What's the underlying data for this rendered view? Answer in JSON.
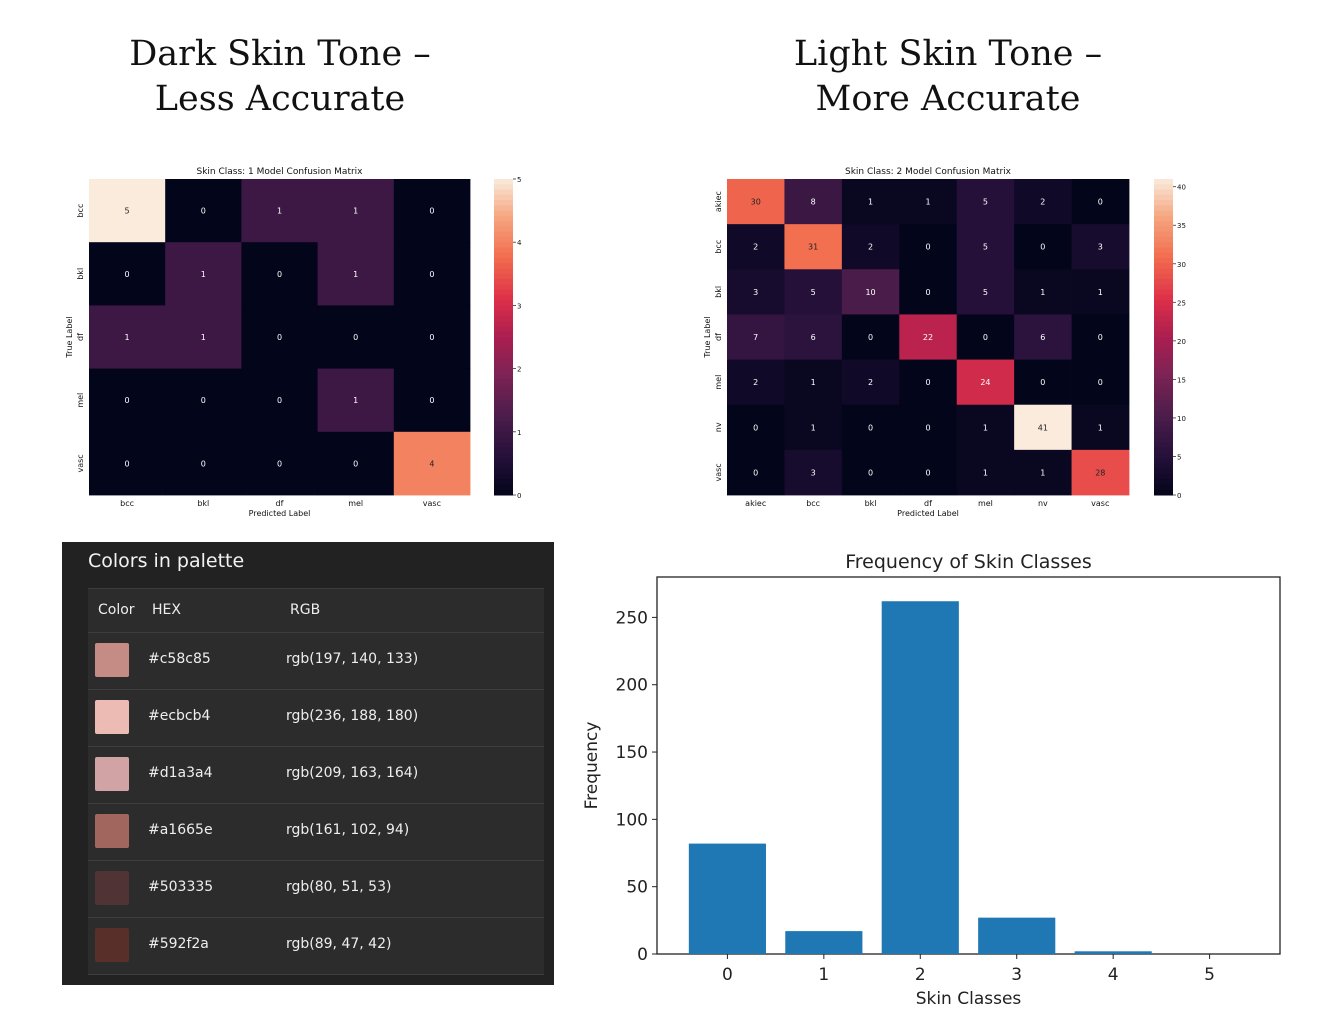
{
  "headings": {
    "left": [
      "Dark Skin Tone –",
      "Less Accurate"
    ],
    "right": [
      "Light Skin Tone –",
      "More Accurate"
    ]
  },
  "palette": {
    "title": "Colors in palette",
    "headers": [
      "Color",
      "HEX",
      "RGB"
    ],
    "rows": [
      {
        "hex": "#c58c85",
        "rgb": "rgb(197, 140, 133)"
      },
      {
        "hex": "#ecbcb4",
        "rgb": "rgb(236, 188, 180)"
      },
      {
        "hex": "#d1a3a4",
        "rgb": "rgb(209, 163, 164)"
      },
      {
        "hex": "#a1665e",
        "rgb": "rgb(161, 102, 94)"
      },
      {
        "hex": "#503335",
        "rgb": "rgb(80, 51, 53)"
      },
      {
        "hex": "#592f2a",
        "rgb": "rgb(89, 47, 42)"
      }
    ]
  },
  "chart_data": [
    {
      "type": "heatmap",
      "title": "Skin Class: 1 Model Confusion Matrix",
      "xlabel": "Predicted Label",
      "ylabel": "True Label",
      "x_labels": [
        "bcc",
        "bkl",
        "df",
        "mel",
        "vasc"
      ],
      "y_labels": [
        "bcc",
        "bkl",
        "df",
        "mel",
        "vasc"
      ],
      "values": [
        [
          5,
          0,
          1,
          1,
          0
        ],
        [
          0,
          1,
          0,
          1,
          0
        ],
        [
          1,
          1,
          0,
          0,
          0
        ],
        [
          0,
          0,
          0,
          1,
          0
        ],
        [
          0,
          0,
          0,
          0,
          4
        ]
      ],
      "colorbar_range": [
        0,
        5
      ],
      "colorbar_ticks": [
        0,
        1,
        2,
        3,
        4,
        5
      ],
      "colormap": "rocket"
    },
    {
      "type": "heatmap",
      "title": "Skin Class: 2 Model Confusion Matrix",
      "xlabel": "Predicted Label",
      "ylabel": "True Label",
      "x_labels": [
        "akiec",
        "bcc",
        "bkl",
        "df",
        "mel",
        "nv",
        "vasc"
      ],
      "y_labels": [
        "akiec",
        "bcc",
        "bkl",
        "df",
        "mel",
        "nv",
        "vasc"
      ],
      "values": [
        [
          30,
          8,
          1,
          1,
          5,
          2,
          0
        ],
        [
          2,
          31,
          2,
          0,
          5,
          0,
          3
        ],
        [
          3,
          5,
          10,
          0,
          5,
          1,
          1
        ],
        [
          7,
          6,
          0,
          22,
          0,
          6,
          0
        ],
        [
          2,
          1,
          2,
          0,
          24,
          0,
          0
        ],
        [
          0,
          1,
          0,
          0,
          1,
          41,
          1
        ],
        [
          0,
          3,
          0,
          0,
          1,
          1,
          28
        ]
      ],
      "colorbar_range": [
        0,
        41
      ],
      "colorbar_ticks": [
        0,
        5,
        10,
        15,
        20,
        25,
        30,
        35,
        40
      ],
      "colormap": "rocket"
    },
    {
      "type": "bar",
      "title": "Frequency of Skin Classes",
      "xlabel": "Skin Classes",
      "ylabel": "Frequency",
      "categories": [
        "0",
        "1",
        "2",
        "3",
        "4",
        "5"
      ],
      "values": [
        82,
        17,
        262,
        27,
        2,
        0
      ],
      "ylim": [
        0,
        280
      ],
      "yticks": [
        0,
        50,
        100,
        150,
        200,
        250
      ],
      "color": "#1f77b4"
    }
  ]
}
